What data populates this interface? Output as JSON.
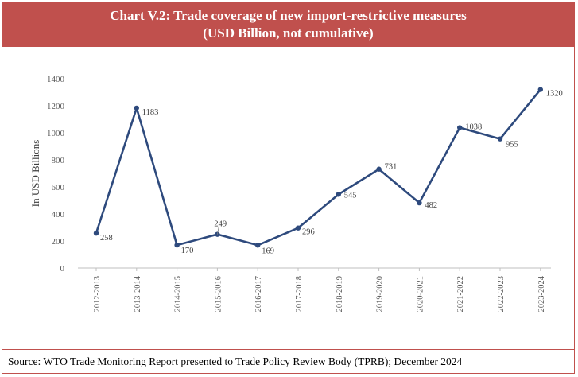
{
  "chart_data": {
    "type": "line",
    "title": "Chart V.2: Trade coverage of new import-restrictive measures",
    "subtitle": "(USD Billion, not cumulative)",
    "ylabel": "In USD Billions",
    "xlabel": "",
    "categories": [
      "2012-2013",
      "2013-2014",
      "2014-2015",
      "2015-2016",
      "2016-2017",
      "2017-2018",
      "2018-2019",
      "2019-2020",
      "2020-2021",
      "2021-2022",
      "2022-2023",
      "2023-2024"
    ],
    "values": [
      258,
      1183,
      170,
      249,
      169,
      296,
      545,
      731,
      482,
      1038,
      955,
      1320
    ],
    "ylim": [
      0,
      1400
    ],
    "yticks": [
      0,
      200,
      400,
      600,
      800,
      1000,
      1200,
      1400
    ],
    "grid": false,
    "legend": "none",
    "line_color": "#2e4a7d"
  },
  "source": "Source: WTO Trade Monitoring Report presented to Trade Policy Review Body (TPRB); December 2024"
}
